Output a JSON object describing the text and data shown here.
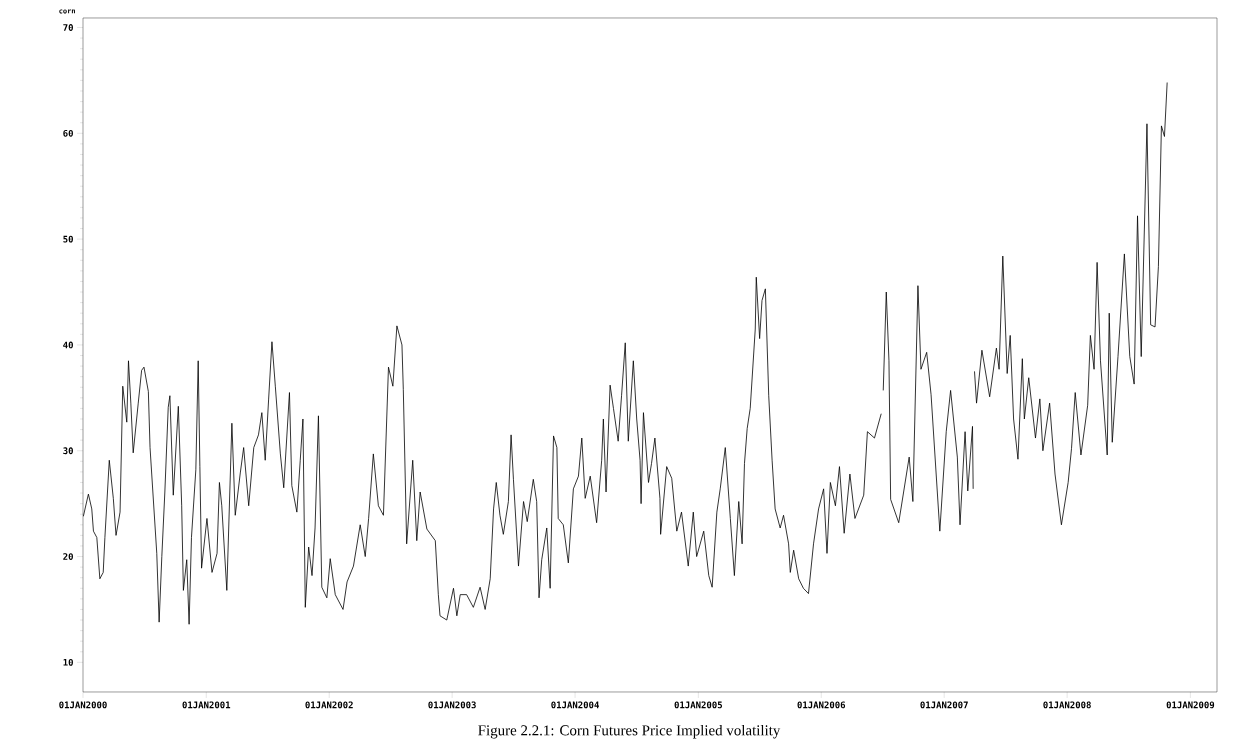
{
  "chart_data": {
    "type": "line",
    "ylabel": "corn",
    "annotations": [
      "Figure 2.2.1: Corn Futures Price Implied volatility"
    ],
    "xlim": [
      "2000-01-01",
      "2009-03-21"
    ],
    "ylim": [
      7.2,
      70.9
    ],
    "xticks": [
      {
        "value": "2000-01-01",
        "label": "01JAN2000"
      },
      {
        "value": "2001-01-01",
        "label": "01JAN2001"
      },
      {
        "value": "2002-01-01",
        "label": "01JAN2002"
      },
      {
        "value": "2003-01-01",
        "label": "01JAN2003"
      },
      {
        "value": "2004-01-01",
        "label": "01JAN2004"
      },
      {
        "value": "2005-01-01",
        "label": "01JAN2005"
      },
      {
        "value": "2006-01-01",
        "label": "01JAN2006"
      },
      {
        "value": "2007-01-01",
        "label": "01JAN2007"
      },
      {
        "value": "2008-01-01",
        "label": "01JAN2008"
      },
      {
        "value": "2009-01-01",
        "label": "01JAN2009"
      }
    ],
    "yticks": [
      10,
      20,
      30,
      40,
      50,
      60,
      70
    ],
    "line_style": "solid",
    "x": [
      "2000-01-02",
      "2000-01-17",
      "2000-01-27",
      "2000-02-01",
      "2000-02-11",
      "2000-02-20",
      "2000-03-01",
      "2000-03-06",
      "2000-03-19",
      "2000-03-31",
      "2000-04-08",
      "2000-04-20",
      "2000-04-28",
      "2000-05-10",
      "2000-05-15",
      "2000-05-22",
      "2000-05-29",
      "2000-06-13",
      "2000-06-23",
      "2000-06-30",
      "2000-07-13",
      "2000-07-18",
      "2000-08-07",
      "2000-08-14",
      "2000-08-22",
      "2000-08-31",
      "2000-09-10",
      "2000-09-15",
      "2000-09-25",
      "2000-10-10",
      "2000-10-20",
      "2000-10-25",
      "2000-11-04",
      "2000-11-11",
      "2000-11-18",
      "2000-12-01",
      "2000-12-08",
      "2000-12-13",
      "2000-12-18",
      "2001-01-03",
      "2001-01-18",
      "2001-02-02",
      "2001-02-09",
      "2001-02-16",
      "2001-03-03",
      "2001-03-18",
      "2001-03-28",
      "2001-04-12",
      "2001-04-22",
      "2001-05-07",
      "2001-05-22",
      "2001-06-05",
      "2001-06-15",
      "2001-06-25",
      "2001-07-05",
      "2001-07-15",
      "2001-07-25",
      "2001-08-09",
      "2001-08-19",
      "2001-09-05",
      "2001-09-12",
      "2001-09-27",
      "2001-10-07",
      "2001-10-15",
      "2001-10-22",
      "2001-11-01",
      "2001-11-11",
      "2001-11-20",
      "2001-11-30",
      "2001-12-10",
      "2001-12-25",
      "2002-01-04",
      "2002-01-19",
      "2002-02-11",
      "2002-02-23",
      "2002-03-14",
      "2002-04-03",
      "2002-04-18",
      "2002-04-28",
      "2002-05-12",
      "2002-05-27",
      "2002-06-11",
      "2002-06-26",
      "2002-07-09",
      "2002-07-21",
      "2002-08-05",
      "2002-08-09",
      "2002-08-19",
      "2002-09-06",
      "2002-09-18",
      "2002-09-28",
      "2002-10-18",
      "2002-11-12",
      "2002-11-21",
      "2002-11-26",
      "2002-12-16",
      "2003-01-05",
      "2003-01-15",
      "2003-01-25",
      "2003-02-13",
      "2003-03-05",
      "2003-03-25",
      "2003-04-09",
      "2003-04-24",
      "2003-05-04",
      "2003-05-12",
      "2003-05-23",
      "2003-06-02",
      "2003-06-17",
      "2003-06-25",
      "2003-07-02",
      "2003-07-17",
      "2003-08-01",
      "2003-08-12",
      "2003-08-30",
      "2003-09-09",
      "2003-09-16",
      "2003-09-24",
      "2003-10-09",
      "2003-10-19",
      "2003-10-29",
      "2003-11-08",
      "2003-11-12",
      "2003-11-27",
      "2003-12-12",
      "2003-12-27",
      "2004-01-11",
      "2004-01-21",
      "2004-01-31",
      "2004-02-15",
      "2004-03-05",
      "2004-03-20",
      "2004-03-25",
      "2004-04-02",
      "2004-04-14",
      "2004-04-24",
      "2004-05-08",
      "2004-05-18",
      "2004-05-29",
      "2004-06-07",
      "2004-06-22",
      "2004-07-02",
      "2004-07-12",
      "2004-07-15",
      "2004-07-22",
      "2004-08-06",
      "2004-08-15",
      "2004-08-25",
      "2004-09-09",
      "2004-09-11",
      "2004-09-29",
      "2004-10-14",
      "2004-10-29",
      "2004-11-12",
      "2004-12-02",
      "2004-12-17",
      "2004-12-27",
      "2005-01-17",
      "2005-02-01",
      "2005-02-11",
      "2005-02-25",
      "2005-03-07",
      "2005-03-22",
      "2005-04-06",
      "2005-04-18",
      "2005-05-01",
      "2005-05-11",
      "2005-05-18",
      "2005-05-26",
      "2005-06-04",
      "2005-06-19",
      "2005-06-22",
      "2005-07-02",
      "2005-07-09",
      "2005-07-19",
      "2005-07-29",
      "2005-08-08",
      "2005-08-17",
      "2005-09-01",
      "2005-09-11",
      "2005-09-26",
      "2005-10-01",
      "2005-10-11",
      "2005-10-26",
      "2005-11-09",
      "2005-11-24",
      "2005-12-09",
      "2005-12-24",
      "2006-01-08",
      "2006-01-18",
      "2006-01-28",
      "2006-02-12",
      "2006-02-24",
      "2006-03-10",
      "2006-03-27",
      "2006-04-11",
      "2006-05-07",
      "2006-05-18",
      "2006-06-08",
      "2006-06-28",
      "2006-07-01",
      "2006-07-04",
      "2006-07-13",
      "2006-07-21",
      "2006-07-26",
      "2006-08-19",
      "2006-09-19",
      "2006-09-30",
      "2006-10-15",
      "2006-10-24",
      "2006-11-10",
      "2006-11-23",
      "2006-12-19",
      "2007-01-07",
      "2007-01-20",
      "2007-02-09",
      "2007-02-17",
      "2007-03-04",
      "2007-03-12",
      "2007-03-26",
      "2007-03-28",
      "2007-03-30",
      "2007-04-01",
      "2007-04-07",
      "2007-04-23",
      "2007-05-16",
      "2007-06-05",
      "2007-06-13",
      "2007-06-24",
      "2007-07-07",
      "2007-07-16",
      "2007-07-26",
      "2007-08-08",
      "2007-08-21",
      "2007-08-27",
      "2007-09-09",
      "2007-09-29",
      "2007-10-12",
      "2007-10-21",
      "2007-11-10",
      "2007-11-26",
      "2007-12-15",
      "2008-01-04",
      "2008-01-14",
      "2008-01-25",
      "2008-02-11",
      "2008-03-02",
      "2008-03-10",
      "2008-03-21",
      "2008-03-30",
      "2008-04-09",
      "2008-04-29",
      "2008-05-05",
      "2008-05-14",
      "2008-05-31",
      "2008-06-19",
      "2008-07-05",
      "2008-07-18",
      "2008-07-28",
      "2008-08-08",
      "2008-08-25",
      "2008-09-05",
      "2008-09-18",
      "2008-09-28",
      "2008-10-07",
      "2008-10-16",
      "2008-10-24"
    ],
    "series": [
      {
        "color": "#000000",
        "values": [
          23.8,
          25.9,
          24.5,
          22.4,
          21.8,
          17.9,
          18.5,
          21.8,
          29.1,
          25.5,
          22,
          24.2,
          36.1,
          32.7,
          38.5,
          34.5,
          29.8,
          34.5,
          37.6,
          37.9,
          35.6,
          30.3,
          20.3,
          13.8,
          20,
          26.1,
          34.1,
          35.2,
          25.8,
          34.2,
          24.8,
          16.8,
          19.7,
          13.6,
          21.8,
          28.2,
          38.5,
          28.5,
          18.9,
          23.6,
          18.5,
          20.3,
          27,
          24.8,
          16.8,
          32.6,
          23.9,
          27.9,
          30.3,
          24.8,
          30.3,
          31.5,
          33.6,
          29.1,
          34.8,
          40.3,
          36.1,
          29.7,
          26.5,
          35.5,
          26.7,
          24.2,
          29.1,
          33,
          15.2,
          20.9,
          18.2,
          22.7,
          33.3,
          17.1,
          16.1,
          19.8,
          16.4,
          15,
          17.6,
          19.1,
          23,
          20,
          23.6,
          29.7,
          24.8,
          23.9,
          37.9,
          36.1,
          41.8,
          40,
          35.8,
          21.2,
          29.1,
          21.5,
          26.1,
          22.6,
          21.5,
          16.4,
          14.4,
          14,
          17,
          14.4,
          16.4,
          16.4,
          15.2,
          17.1,
          15,
          17.9,
          24.5,
          27,
          23.9,
          22.1,
          25.2,
          31.5,
          27.3,
          19.1,
          25.2,
          23.3,
          27.3,
          25.2,
          16.1,
          19.7,
          22.7,
          17,
          31.4,
          30.3,
          23.6,
          23,
          19.4,
          26.4,
          27.6,
          31.2,
          25.5,
          27.6,
          23.2,
          29.1,
          33,
          26.1,
          36.2,
          34,
          30.9,
          35.2,
          40.2,
          30.9,
          38.5,
          33,
          29.1,
          25,
          33.6,
          27,
          28.8,
          31.2,
          25.5,
          22.1,
          28.5,
          27.4,
          22.4,
          24.2,
          19.1,
          24.2,
          20,
          22.4,
          18.2,
          17.1,
          24.2,
          26.4,
          30.3,
          23.6,
          18.2,
          25.2,
          21.2,
          28.8,
          32.1,
          34,
          41.5,
          46.4,
          40.6,
          44.2,
          45.3,
          35.2,
          29.1,
          24.5,
          22.7,
          23.9,
          21.2,
          18.5,
          20.6,
          17.9,
          17,
          16.5,
          21.2,
          24.5,
          26.4,
          20.3,
          27,
          24.8,
          28.5,
          22.2,
          27.8,
          23.6,
          25.8,
          31.8,
          31.2,
          33.5,
          null,
          35.7,
          45,
          38.5,
          25.4,
          23.2,
          29.4,
          25.2,
          45.6,
          37.7,
          39.3,
          35.3,
          22.4,
          31.8,
          35.7,
          29.4,
          23,
          31.8,
          26.2,
          32.3,
          26.4,
          null,
          37.5,
          34.5,
          39.5,
          35.1,
          39.7,
          37.7,
          48.4,
          37.3,
          40.9,
          33,
          29.2,
          38.7,
          33,
          36.9,
          31.2,
          34.9,
          30,
          34.5,
          27.8,
          23,
          27,
          30.2,
          35.5,
          29.6,
          34.3,
          40.9,
          37.7,
          47.8,
          38.5,
          29.6,
          43,
          30.8,
          38.9,
          48.6,
          38.9,
          36.3,
          52.2,
          38.9,
          60.9,
          41.9,
          41.7,
          47.4,
          60.7,
          59.7,
          64.8
        ]
      }
    ]
  }
}
